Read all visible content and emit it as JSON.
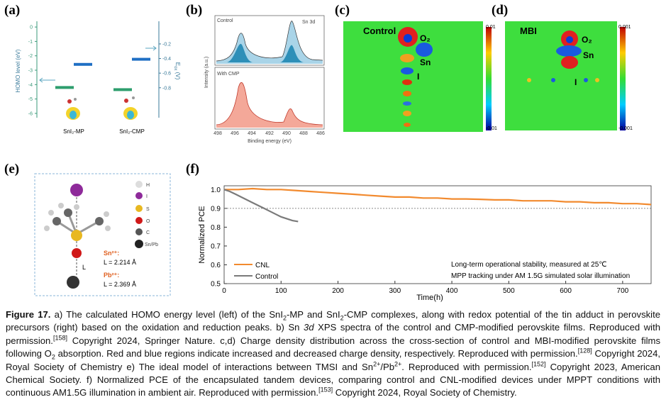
{
  "chart_data": [
    {
      "type": "bar",
      "label": "(a)",
      "ylabel": "HOMO level (eV)",
      "ylabel2": [
        "E",
        "ox",
        " (V)"
      ],
      "ylim": [
        -6.3,
        0.4
      ],
      "yticks": [
        0,
        -1,
        -2,
        -3,
        -4,
        -5,
        -6
      ],
      "y2lim": [
        -1.21,
        0.11
      ],
      "y2ticks": [
        -0.2,
        -0.4,
        -0.6,
        -0.8
      ],
      "categories": [
        "SnI₂-MP",
        "SnI₂-CMP"
      ],
      "series": [
        {
          "color": "#2e9e6e",
          "values": [
            -4.2,
            -4.35
          ]
        },
        {
          "color": "#1f6fc4",
          "axis": "y2",
          "values": [
            -0.48,
            -0.41
          ]
        }
      ]
    },
    {
      "type": "line",
      "label": "(f)",
      "xlabel": "Time(h)",
      "ylabel": "Normalized PCE",
      "xlim": [
        0,
        750
      ],
      "xticks": [
        0,
        100,
        200,
        300,
        400,
        500,
        600,
        700
      ],
      "ylim": [
        0.5,
        1.02
      ],
      "yticks": [
        0.5,
        0.6,
        0.7,
        0.8,
        0.9,
        {
          "value": 1,
          "label": "1.0"
        }
      ],
      "reference_line": 0.9,
      "series": [
        {
          "name": "CNL",
          "color": "#f28a2e",
          "x": [
            0,
            25,
            50,
            75,
            100,
            125,
            150,
            175,
            200,
            225,
            250,
            275,
            300,
            325,
            350,
            375,
            400,
            425,
            450,
            475,
            500,
            525,
            550,
            575,
            600,
            625,
            650,
            675,
            700,
            725,
            750
          ],
          "values": [
            1.0,
            1.0,
            1.005,
            1.0,
            1.0,
            0.995,
            0.99,
            0.985,
            0.98,
            0.975,
            0.97,
            0.965,
            0.96,
            0.96,
            0.955,
            0.955,
            0.95,
            0.95,
            0.948,
            0.945,
            0.945,
            0.94,
            0.94,
            0.94,
            0.935,
            0.935,
            0.93,
            0.93,
            0.925,
            0.925,
            0.92
          ]
        },
        {
          "name": "Control",
          "color": "#7a7a7a",
          "x": [
            0,
            10,
            20,
            30,
            40,
            50,
            60,
            70,
            80,
            90,
            100,
            110,
            120,
            130
          ],
          "values": [
            1.0,
            0.99,
            0.975,
            0.96,
            0.945,
            0.93,
            0.915,
            0.9,
            0.885,
            0.87,
            0.855,
            0.845,
            0.835,
            0.83
          ]
        }
      ],
      "annotations": [
        "Long-term operational stability, measured at 25℃",
        "MPP tracking under AM 1.5G simulated solar illumination"
      ]
    }
  ],
  "panels": {
    "b": {
      "label": "(b)",
      "top_label": "Control",
      "peak_label": "Sn 3d",
      "bottom_label": "With CMP",
      "ylabel": "Intensity (a.u.)",
      "xlabel": "Binding energy (eV)",
      "xticks": [
        "498",
        "496",
        "494",
        "492",
        "490",
        "488",
        "486"
      ]
    },
    "c": {
      "label": "(c)",
      "title": "Control",
      "atoms": [
        "O₂",
        "Sn",
        "I"
      ],
      "cbar_max": "0.01",
      "cbar_min": "-0.01"
    },
    "d": {
      "label": "(d)",
      "title": "MBI",
      "atoms": [
        "O₂",
        "Sn",
        "I"
      ],
      "cbar_max": "0.001",
      "cbar_min": "-0.001"
    },
    "e": {
      "label": "(e)",
      "legend": [
        "H",
        "I",
        "S",
        "O",
        "C",
        "Sn/Pb"
      ],
      "bond": "L",
      "sn_label": "Sn²⁺:",
      "sn_length": "L = 2.214 Å",
      "pb_label": "Pb²⁺:",
      "pb_length": "L = 2.369 Å"
    }
  },
  "caption": [
    "Figure 17.",
    " a) The calculated HOMO energy level (left) of the SnI",
    "2",
    "-MP and SnI",
    "2",
    "-CMP complexes, along with redox potential of the tin adduct in perovskite precursors (right) based on the oxidation and reduction peaks. b) Sn ",
    "3d",
    " XPS spectra of the control and CMP-modified perovskite films. Reproduced with permission.",
    "[158]",
    " Copyright 2024, Springer Nature. c,d) Charge density distribution across the cross-section of control and MBI-modified perovskite films following O",
    "2",
    " absorption. Red and blue regions indicate increased and decreased charge density, respectively. Reproduced with permission.",
    "[128]",
    " Copyright 2024, Royal Society of Chemistry e) The ideal model of interactions between TMSI and Sn",
    "2+",
    "/Pb",
    "2+",
    ". Reproduced with permission.",
    "[152]",
    " Copyright 2023, American Chemical Society. f) Normalized PCE of the encapsulated tandem devices, comparing control and CNL-modified devices under MPPT conditions with continuous AM1.5G illumination in ambient air. Reproduced with permission.",
    "[153]",
    " Copyright 2024, Royal Society of Chemistry."
  ]
}
